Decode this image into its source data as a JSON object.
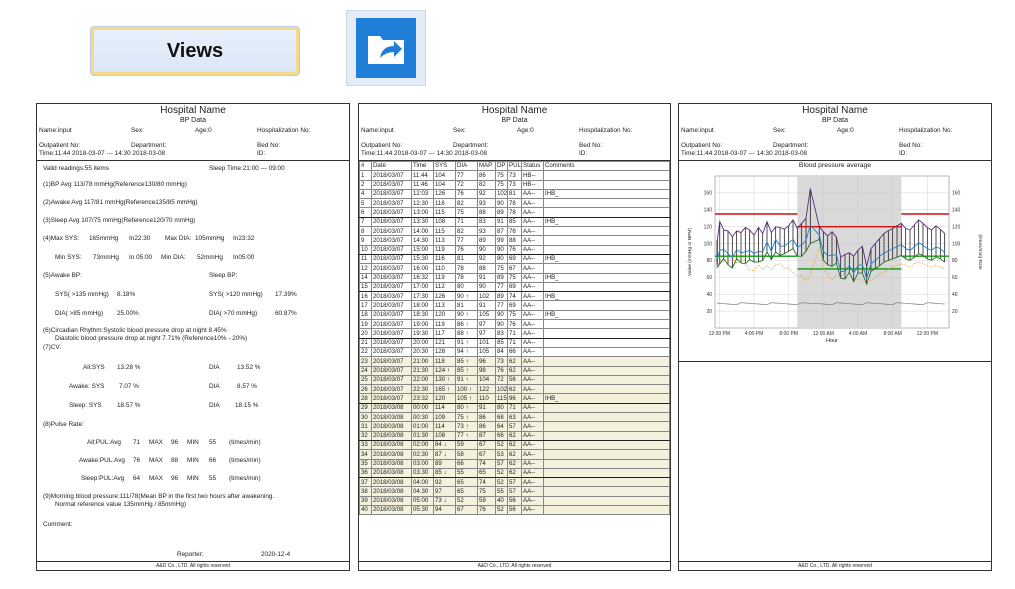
{
  "toolbar": {
    "views_label": "Views",
    "open_icon": "folder-open-arrow-icon"
  },
  "header": {
    "hospital": "Hospital Name",
    "title": "BP Data",
    "name": "Name:input",
    "sex": "Sex:",
    "age": "Age:0",
    "hosp_no": "Hospitalization No:",
    "outpatient": "Outpatient No:",
    "department": "Department:",
    "bed": "Bed No:",
    "time": "Time:11:44 2018-03-07 --- 14:30 2018-03-08",
    "id": "ID:"
  },
  "footer": "A&D Co., LTD. All rights reserved",
  "summary": {
    "valid": "Valid readings:55 items",
    "sleep_time": "Sleep Time:21:00 --- 09:00",
    "bp_avg": "(1)BP Avg    113/78  mmHg(Reference130/80 mmHg)",
    "awake_avg": "(2)Awake Avg    117/81 mmHg(Reference135/85 mmHg)",
    "sleep_avg": "(3)Sleep Avg    107/75 mmHg(Reference120/70 mmHg)",
    "max_sys": "(4)Max SYS:",
    "max_sys_val": "165mmHg",
    "max_sys_time": "In22:30",
    "max_dia": "Max DIA:",
    "max_dia_val": "105mmHg",
    "max_dia_time": "In23:32",
    "min_sys": "Min SYS:",
    "min_sys_val": "73mmHg",
    "min_sys_time": "In 05:00",
    "min_dia": "Min DIA:",
    "min_dia_val": "52mmHg",
    "min_dia_time": "In05:00",
    "awake_bp": "(5)Awake BP:",
    "sleep_bp": "Sleep BP:",
    "awake_sys": "SYS( >135   mmHg)",
    "awake_sys_val": "8.18%",
    "sleep_sys": "SYS( >120   mmHg)",
    "sleep_sys_val": "17.39%",
    "awake_dia": "DIA( >85     mmHg)",
    "awake_dia_val": "25.00%",
    "sleep_dia": "DIA( >70     mmHg)",
    "sleep_dia_val": "60.87%",
    "circadian1": "(6)Circadian Rhythm:Systolic blood pressure drop at night  8.45%",
    "circadian2": "Diastolic blood pressure drop at night    7.71%   (Reference10% - 20%)",
    "cv": "(7)CV:",
    "cv_rows": [
      {
        "l": "All:SYS",
        "v": "13.28 %",
        "d": "DIA",
        "dv": "13.52 %"
      },
      {
        "l": "Awake: SYS",
        "v": "7.07 %",
        "d": "DIA",
        "dv": "8.57 %"
      },
      {
        "l": "Sleep: SYS",
        "v": "18.57 %",
        "d": "DIA",
        "dv": "18.15 %"
      }
    ],
    "pulse": "(8)Pulse Rate:",
    "pulse_rows": [
      {
        "l": "All:PUL:Avg",
        "avg": "71",
        "max": "96",
        "min": "55"
      },
      {
        "l": "Awake:PUL:Avg",
        "avg": "76",
        "max": "88",
        "min": "66"
      },
      {
        "l": "Sleep:PUL:Avg",
        "avg": "64",
        "max": "96",
        "min": "55"
      }
    ],
    "max_label": "MAX",
    "min_label": "MIN",
    "unit": "(times/min)",
    "morning1": "(9)Morning blood pressure:111/78(Mean BP in the first two hours after awakening.",
    "morning2": "Normal reference value  135mmHg / 85mmHg)",
    "comment": "Comment:",
    "reporter": "Reporter:",
    "date": "2020-12-4"
  },
  "table": {
    "columns": [
      "#",
      "Date",
      "Time",
      "SYS",
      "DIA",
      "MAP",
      "DP",
      "PUL",
      "Status",
      "Comments"
    ],
    "rows": [
      [
        "1",
        "2018/03/07",
        "11:44",
        "104",
        "77",
        "86",
        "75",
        "73",
        "HB--",
        ""
      ],
      [
        "2",
        "2018/03/07",
        "11:46",
        "104",
        "72",
        "82",
        "75",
        "73",
        "HB--",
        ""
      ],
      [
        "4",
        "2018/03/07",
        "12:03",
        "126",
        "76",
        "92",
        "102",
        "81",
        "AA--",
        "IHB_"
      ],
      [
        "5",
        "2018/03/07",
        "12:30",
        "116",
        "82",
        "93",
        "90",
        "78",
        "AA--",
        ""
      ],
      [
        "6",
        "2018/03/07",
        "13:00",
        "115",
        "75",
        "88",
        "89",
        "78",
        "AA--",
        ""
      ],
      [
        "7",
        "2018/03/07",
        "13:30",
        "108",
        "71",
        "83",
        "91",
        "85",
        "AA--",
        "IHB_"
      ],
      [
        "8",
        "2018/03/07",
        "14:00",
        "115",
        "82",
        "93",
        "87",
        "76",
        "AA--",
        ""
      ],
      [
        "9",
        "2018/03/07",
        "14:30",
        "113",
        "77",
        "89",
        "99",
        "88",
        "AA--",
        ""
      ],
      [
        "10",
        "2018/03/07",
        "15:00",
        "119",
        "76",
        "90",
        "90",
        "76",
        "AA--",
        ""
      ],
      [
        "11",
        "2018/03/07",
        "15:30",
        "116",
        "81",
        "92",
        "80",
        "69",
        "AA--",
        "IHB_"
      ],
      [
        "12",
        "2018/03/07",
        "16:00",
        "110",
        "78",
        "88",
        "75",
        "67",
        "AA--",
        ""
      ],
      [
        "14",
        "2018/03/07",
        "16:32",
        "119",
        "78",
        "91",
        "89",
        "75",
        "AA--",
        "IHB_"
      ],
      [
        "15",
        "2018/03/07",
        "17:00",
        "112",
        "80",
        "90",
        "77",
        "69",
        "AA--",
        ""
      ],
      [
        "16",
        "2018/03/07",
        "17:30",
        "126",
        "90 ↑",
        "102",
        "89",
        "74",
        "AA--",
        "IHB_"
      ],
      [
        "17",
        "2018/03/07",
        "18:00",
        "113",
        "81",
        "91",
        "77",
        "69",
        "AA--",
        ""
      ],
      [
        "18",
        "2018/03/07",
        "18:30",
        "120",
        "90 ↑",
        "105",
        "90",
        "75",
        "AA--",
        "IHB_"
      ],
      [
        "19",
        "2018/03/07",
        "19:00",
        "119",
        "86 ↑",
        "97",
        "90",
        "76",
        "AA--",
        ""
      ],
      [
        "20",
        "2018/03/07",
        "19:30",
        "117",
        "88 ↑",
        "97",
        "83",
        "71",
        "AA--",
        ""
      ],
      [
        "21",
        "2018/03/07",
        "20:00",
        "121",
        "91 ↑",
        "101",
        "85",
        "71",
        "AA--",
        ""
      ],
      [
        "22",
        "2018/03/07",
        "20:30",
        "128",
        "94 ↑",
        "105",
        "84",
        "66",
        "AA--",
        ""
      ],
      [
        "23",
        "2018/03/07",
        "21:00",
        "118",
        "85 ↑",
        "96",
        "73",
        "62",
        "AA--",
        ""
      ],
      [
        "24",
        "2018/03/07",
        "21:30",
        "124 ↑",
        "85 ↑",
        "98",
        "76",
        "62",
        "AA--",
        ""
      ],
      [
        "25",
        "2018/03/07",
        "22:00",
        "130 ↑",
        "91 ↑",
        "104",
        "72",
        "56",
        "AA--",
        ""
      ],
      [
        "26",
        "2018/03/07",
        "22:30",
        "165 ↑",
        "100 ↑",
        "122",
        "102",
        "62",
        "AA--",
        ""
      ],
      [
        "28",
        "2018/03/07",
        "23:32",
        "120",
        "105 ↑",
        "110",
        "115",
        "96",
        "AA--",
        "IHB_"
      ],
      [
        "29",
        "2018/03/08",
        "00:00",
        "114",
        "80 ↑",
        "91",
        "80",
        "71",
        "AA--",
        ""
      ],
      [
        "30",
        "2018/03/08",
        "00:30",
        "109",
        "75 ↑",
        "86",
        "68",
        "63",
        "AA--",
        ""
      ],
      [
        "31",
        "2018/03/08",
        "01:00",
        "114",
        "73 ↑",
        "86",
        "64",
        "57",
        "AA--",
        ""
      ],
      [
        "32",
        "2018/03/08",
        "01:30",
        "108",
        "77 ↑",
        "87",
        "66",
        "62",
        "AA--",
        ""
      ],
      [
        "33",
        "2018/03/08",
        "02:00",
        "84 ↓",
        "59",
        "67",
        "52",
        "62",
        "AA--",
        ""
      ],
      [
        "34",
        "2018/03/08",
        "02:30",
        "87 ↓",
        "58",
        "67",
        "53",
        "62",
        "AA--",
        ""
      ],
      [
        "35",
        "2018/03/08",
        "03:00",
        "89",
        "66",
        "74",
        "57",
        "62",
        "AA--",
        ""
      ],
      [
        "36",
        "2018/03/08",
        "03:30",
        "85 ↓",
        "55",
        "65",
        "52",
        "62",
        "AA--",
        ""
      ],
      [
        "37",
        "2018/03/08",
        "04:00",
        "92",
        "65",
        "74",
        "52",
        "57",
        "AA--",
        ""
      ],
      [
        "38",
        "2018/03/08",
        "04:30",
        "97",
        "65",
        "75",
        "55",
        "57",
        "AA--",
        ""
      ],
      [
        "39",
        "2018/03/08",
        "05:00",
        "73 ↓",
        "52",
        "59",
        "40",
        "56",
        "AA--",
        ""
      ],
      [
        "40",
        "2018/03/08",
        "05:30",
        "94",
        "67",
        "76",
        "52",
        "56",
        "AA--",
        ""
      ]
    ]
  },
  "chart_data": {
    "type": "line",
    "title": "Blood pressure average",
    "xlabel": "Hour",
    "ylabel": "Value (mmHg or BPM)",
    "y2label": "(times/min) Rate",
    "ylim": [
      0,
      180
    ],
    "yticks": [
      20,
      40,
      60,
      80,
      100,
      120,
      140,
      160
    ],
    "y2ticks": [
      20,
      40,
      60,
      80,
      100,
      120,
      140,
      160
    ],
    "xticks": [
      "12:00 PM",
      "4:00 PM",
      "8:00 PM",
      "12:00 AM",
      "4:00 AM",
      "8:00 AM",
      "12:00 PM"
    ],
    "xrange_hours": [
      11.5,
      38.5
    ],
    "sleep_band_hours": [
      21,
      33
    ],
    "grid": true,
    "ref_lines": [
      {
        "from": 11.5,
        "to": 21,
        "value": 135,
        "color": "#cc1111"
      },
      {
        "from": 21,
        "to": 33,
        "value": 120,
        "color": "#cc1111"
      },
      {
        "from": 33,
        "to": 38.5,
        "value": 135,
        "color": "#cc1111"
      },
      {
        "from": 11.5,
        "to": 21,
        "value": 85,
        "color": "#119911"
      },
      {
        "from": 21,
        "to": 33,
        "value": 70,
        "color": "#119911"
      },
      {
        "from": 33,
        "to": 38.5,
        "value": 85,
        "color": "#119911"
      }
    ],
    "x": [
      11.73,
      11.77,
      12.05,
      12.5,
      13,
      13.5,
      14,
      14.5,
      15,
      15.5,
      16,
      16.53,
      17,
      17.5,
      18,
      18.5,
      19,
      19.5,
      20,
      20.5,
      21,
      21.5,
      22,
      22.5,
      23.53,
      24,
      24.5,
      25,
      25.5,
      26,
      26.5,
      27,
      27.5,
      28,
      28.5,
      29,
      29.5,
      30,
      30.5,
      31,
      31.5,
      32,
      32.5,
      33,
      33.5,
      34,
      34.5,
      35,
      35.5,
      36,
      36.5,
      37,
      37.5,
      38
    ],
    "series": [
      {
        "name": "SYS",
        "color": "#5a2d7a",
        "values": [
          104,
          104,
          126,
          116,
          115,
          108,
          115,
          113,
          119,
          116,
          110,
          119,
          112,
          126,
          113,
          120,
          119,
          117,
          121,
          128,
          118,
          124,
          130,
          165,
          120,
          114,
          109,
          114,
          108,
          84,
          87,
          89,
          85,
          92,
          97,
          73,
          94,
          100,
          106,
          112,
          115,
          118,
          121,
          124,
          118,
          116,
          122,
          128,
          124,
          119,
          116,
          121,
          117,
          112
        ]
      },
      {
        "name": "DIA",
        "color": "#2a6f2a",
        "values": [
          77,
          72,
          76,
          82,
          75,
          71,
          82,
          77,
          76,
          81,
          78,
          78,
          80,
          90,
          81,
          90,
          86,
          88,
          91,
          94,
          85,
          85,
          91,
          100,
          105,
          80,
          75,
          73,
          77,
          59,
          58,
          66,
          55,
          65,
          65,
          52,
          67,
          70,
          74,
          78,
          80,
          82,
          84,
          86,
          82,
          80,
          84,
          88,
          86,
          82,
          80,
          84,
          82,
          78
        ]
      },
      {
        "name": "MAP",
        "color": "#1e7fc7",
        "values": [
          86,
          82,
          92,
          93,
          88,
          83,
          93,
          89,
          90,
          92,
          88,
          91,
          90,
          102,
          91,
          105,
          97,
          97,
          101,
          105,
          96,
          98,
          104,
          122,
          110,
          91,
          86,
          86,
          87,
          67,
          67,
          74,
          65,
          74,
          75,
          59,
          76,
          80,
          85,
          89,
          91,
          94,
          96,
          99,
          94,
          92,
          96,
          101,
          98,
          94,
          92,
          96,
          94,
          89
        ]
      },
      {
        "name": "PUL",
        "color": "#e89a2c",
        "values": [
          73,
          73,
          81,
          78,
          78,
          85,
          76,
          88,
          76,
          69,
          67,
          75,
          69,
          74,
          69,
          75,
          76,
          71,
          71,
          66,
          62,
          62,
          56,
          62,
          96,
          71,
          63,
          57,
          62,
          62,
          62,
          62,
          62,
          57,
          57,
          56,
          56,
          60,
          64,
          66,
          70,
          72,
          74,
          76,
          74,
          72,
          76,
          78,
          76,
          74,
          72,
          74,
          72,
          70
        ]
      }
    ]
  }
}
